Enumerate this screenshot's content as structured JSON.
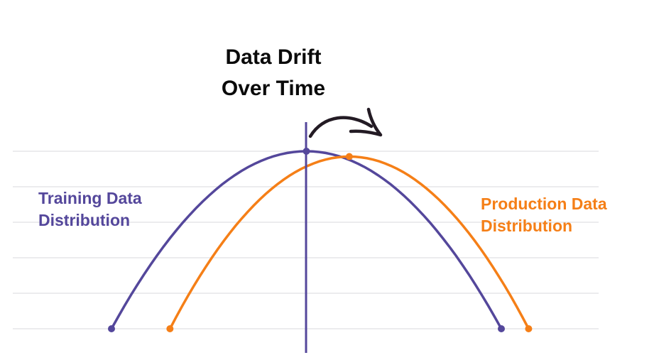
{
  "diagram": {
    "title_line1": "Data Drift",
    "title_line2": "Over Time",
    "training": {
      "label_line1": "Training Data",
      "label_line2": "Distribution",
      "color": "#54479b"
    },
    "production": {
      "label_line1": "Production Data",
      "label_line2": "Distribution",
      "color": "#f57f17"
    },
    "marker_color": "#54479b",
    "arrow_color": "#231b24",
    "grid_color": "#d9d9de",
    "title_color": "#0a0a0a"
  },
  "chart_data": {
    "type": "line",
    "title": "Data Drift Over Time",
    "xlabel": "",
    "ylabel": "",
    "ylim": [
      0,
      5
    ],
    "grid": true,
    "series": [
      {
        "name": "Training Data Distribution",
        "x": [
          -0.5,
          0.0,
          0.5
        ],
        "y": [
          0,
          5,
          0
        ]
      },
      {
        "name": "Production Data Distribution",
        "x": [
          -0.35,
          0.11,
          0.57
        ],
        "y": [
          0,
          4.85,
          0
        ]
      }
    ]
  }
}
